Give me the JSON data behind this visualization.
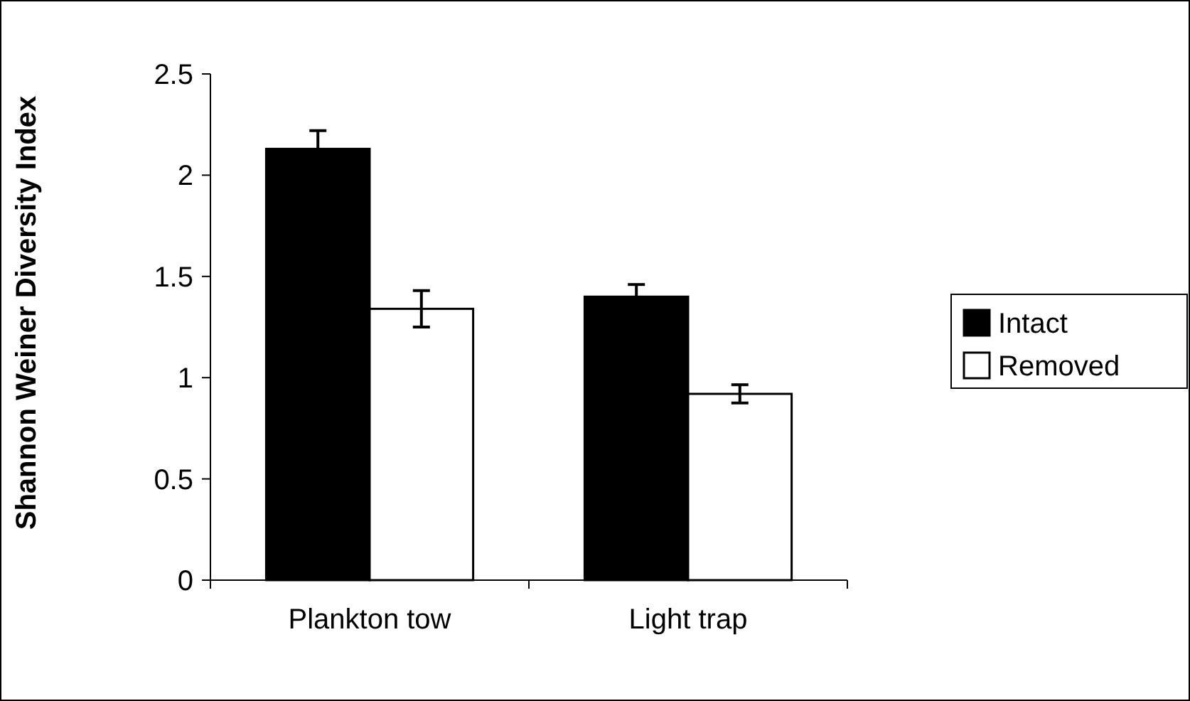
{
  "chart_data": {
    "type": "bar",
    "ylabel": "Shannon Weiner Diversity Index",
    "categories": [
      "Plankton tow",
      "Light trap"
    ],
    "series": [
      {
        "name": "Intact",
        "color": "#000000",
        "values": [
          2.13,
          1.4
        ],
        "errors": [
          0.09,
          0.06
        ]
      },
      {
        "name": "Removed",
        "color": "#ffffff",
        "values": [
          1.34,
          0.92
        ],
        "errors": [
          0.09,
          0.045
        ]
      }
    ],
    "ylim": [
      0,
      2.5
    ],
    "yticks": [
      0,
      0.5,
      1,
      1.5,
      2,
      2.5
    ],
    "grid": false,
    "legend": "right"
  }
}
